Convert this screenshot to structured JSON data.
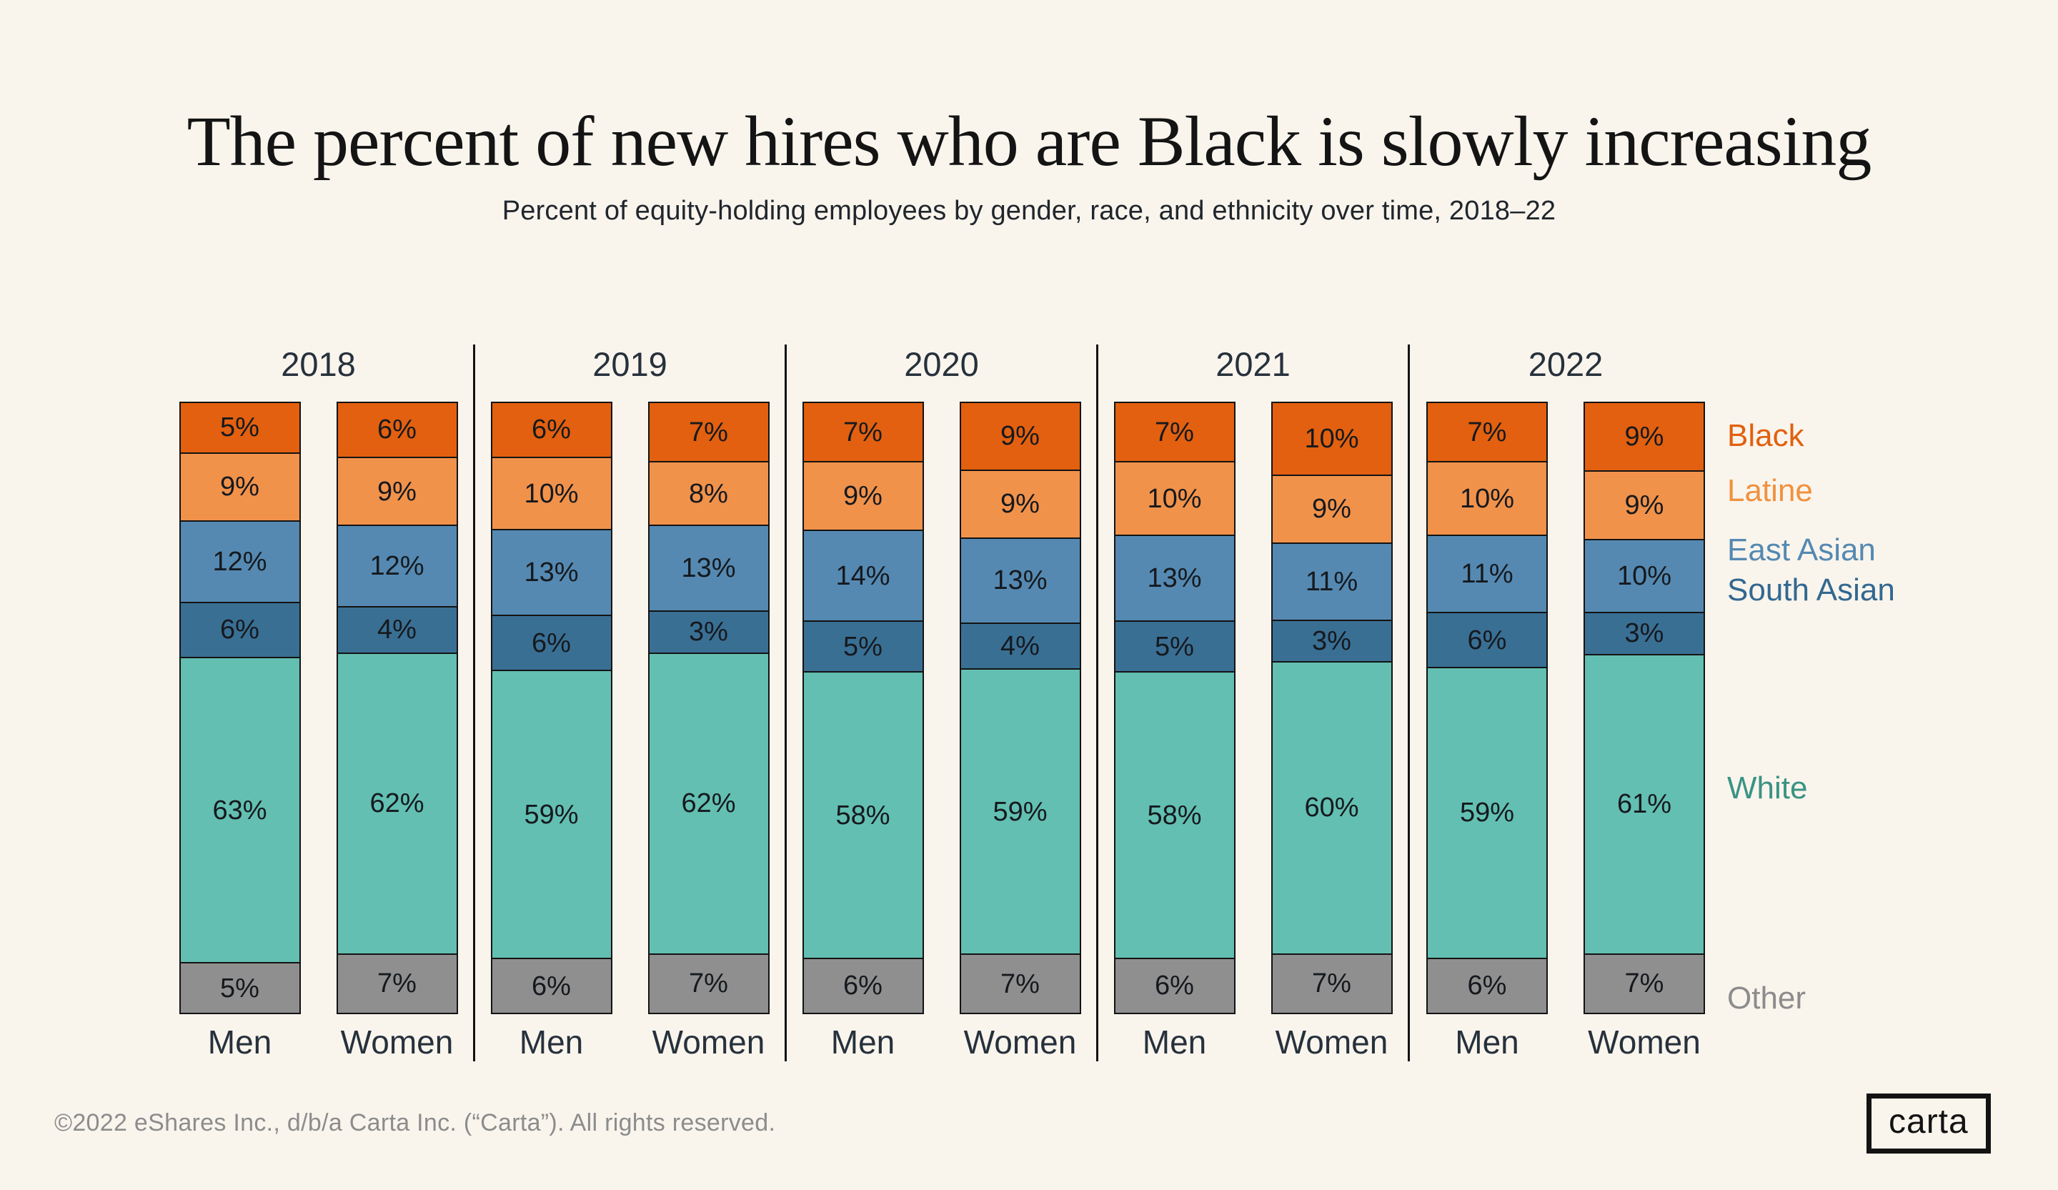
{
  "title": "The percent of new hires who are Black is slowly increasing",
  "subtitle": "Percent of equity-holding employees by gender, race, and ethnicity over time, 2018–22",
  "footer": "©2022 eShares Inc., d/b/a Carta Inc. (“Carta”). All rights reserved.",
  "logo_text": "carta",
  "colors": {
    "background": "#F9F5ED",
    "bar_border": "#131313",
    "group_divider": "#131313",
    "segment_label_text": "#15191E",
    "axis_label_text": "#27313C",
    "footer_text": "#8C8C8C",
    "logo": "#131313"
  },
  "chart_data": {
    "type": "bar",
    "stacked": true,
    "orientation": "vertical",
    "unit": "%",
    "value_labels": "inside",
    "legend_position": "right",
    "ylim": [
      0,
      100
    ],
    "grid": false,
    "groups": [
      "2018",
      "2019",
      "2020",
      "2021",
      "2022"
    ],
    "bar_labels": [
      "Men",
      "Women"
    ],
    "series": [
      {
        "name": "Black",
        "color": "#E2600F",
        "values": [
          [
            5,
            6
          ],
          [
            6,
            7
          ],
          [
            7,
            9
          ],
          [
            7,
            10
          ],
          [
            7,
            9
          ]
        ]
      },
      {
        "name": "Latine",
        "color": "#F1924B",
        "values": [
          [
            9,
            9
          ],
          [
            10,
            8
          ],
          [
            9,
            9
          ],
          [
            10,
            9
          ],
          [
            10,
            9
          ]
        ]
      },
      {
        "name": "East Asian",
        "color": "#5589B1",
        "values": [
          [
            12,
            12
          ],
          [
            13,
            13
          ],
          [
            14,
            13
          ],
          [
            13,
            11
          ],
          [
            11,
            10
          ]
        ]
      },
      {
        "name": "South Asian",
        "color": "#3A6F94",
        "values": [
          [
            6,
            4
          ],
          [
            6,
            3
          ],
          [
            5,
            4
          ],
          [
            5,
            3
          ],
          [
            6,
            3
          ]
        ]
      },
      {
        "name": "White",
        "color": "#63BFB1",
        "values": [
          [
            63,
            62
          ],
          [
            59,
            62
          ],
          [
            58,
            59
          ],
          [
            58,
            60
          ],
          [
            59,
            61
          ]
        ]
      },
      {
        "name": "Other",
        "color": "#8F8F8F",
        "values": [
          [
            5,
            7
          ],
          [
            6,
            7
          ],
          [
            6,
            7
          ],
          [
            6,
            7
          ],
          [
            6,
            7
          ]
        ]
      }
    ],
    "legend": [
      {
        "label": "Black",
        "color": "#E2600F"
      },
      {
        "label": "Latine",
        "color": "#F1913F"
      },
      {
        "label": "East Asian",
        "color": "#5589B1"
      },
      {
        "label": "South Asian",
        "color": "#336890"
      },
      {
        "label": "White",
        "color": "#3A9384"
      },
      {
        "label": "Other",
        "color": "#8C8C8C"
      }
    ]
  }
}
